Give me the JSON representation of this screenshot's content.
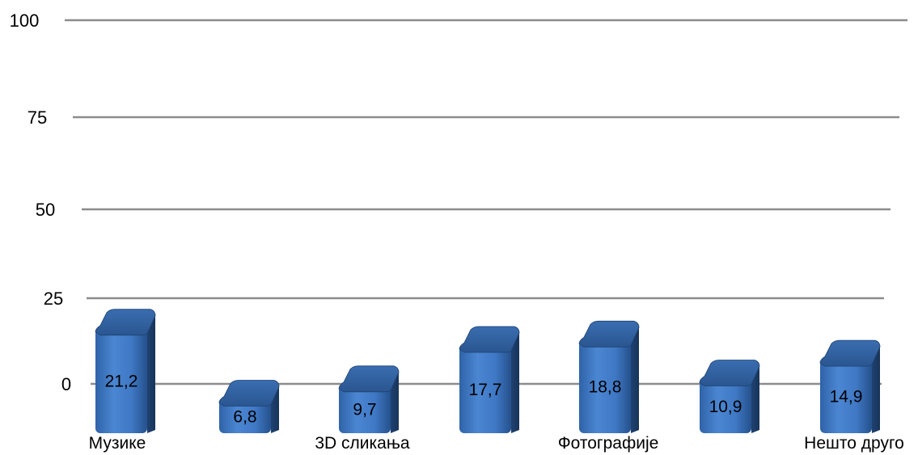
{
  "chart_data": {
    "type": "bar",
    "categories": [
      "Музике",
      "",
      "3D сликања",
      "",
      "Фотографије",
      "",
      "Нешто друго"
    ],
    "values": [
      21.2,
      6.8,
      9.7,
      17.7,
      18.8,
      10.9,
      14.9
    ],
    "data_labels": [
      "21,2",
      "6,8",
      "9,7",
      "17,7",
      "18,8",
      "10,9",
      "14,9"
    ],
    "y_ticks": [
      "0",
      "25",
      "50",
      "75",
      "100"
    ],
    "ylim": [
      0,
      100
    ],
    "grid": true,
    "bar_color": "#3f78c4",
    "bar_top_color": "#2c5a92",
    "grid_color": "#8c8c8c"
  }
}
